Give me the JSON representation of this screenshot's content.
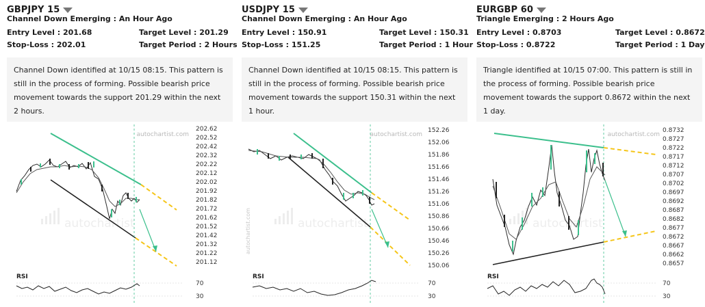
{
  "cards": [
    {
      "symbol": "GBPJPY 15",
      "pattern": "Channel Down Emerging : An Hour Ago",
      "entry": "Entry Level : 201.68",
      "target": "Target Level : 201.29",
      "stop": "Stop-Loss : 202.01",
      "period": "Target Period : 2 Hours",
      "description": "Channel Down identified at 10/15 08:15. This pattern is still in the process of forming. Possible bearish price movement towards the support 201.29 within the next 2 hours.",
      "watermark": "autochartist.com",
      "logo": "autochartist",
      "rsi_label": "RSI",
      "rsi_ticks": [
        "70",
        "30"
      ],
      "y_ticks": [
        "202.62",
        "202.52",
        "202.42",
        "202.32",
        "202.22",
        "202.12",
        "202.02",
        "201.92",
        "201.82",
        "201.72",
        "201.62",
        "201.52",
        "201.42",
        "201.32",
        "201.22",
        "201.12"
      ]
    },
    {
      "symbol": "USDJPY 15",
      "pattern": "Channel Down Emerging : An Hour Ago",
      "entry": "Entry Level : 150.91",
      "target": "Target Level : 150.31",
      "stop": "Stop-Loss : 151.25",
      "period": "Target Period : 1 Hour",
      "description": "Channel Down identified at 10/15 08:15. This pattern is still in the process of forming. Possible bearish price movement towards the support 150.31 within the next 1 hour.",
      "watermark": "autochartist.com",
      "logo": "autochartist",
      "rsi_label": "RSI",
      "rsi_ticks": [
        "70",
        "30"
      ],
      "y_ticks": [
        "152.26",
        "152.06",
        "151.86",
        "151.66",
        "151.46",
        "151.26",
        "151.06",
        "150.86",
        "150.66",
        "150.46",
        "150.26",
        "150.06"
      ]
    },
    {
      "symbol": "EURGBP 60",
      "pattern": "Triangle Emerging : 2 Hours Ago",
      "entry": "Entry Level : 0.8703",
      "target": "Target Level : 0.8672",
      "stop": "Stop-Loss : 0.8722",
      "period": "Target Period : 1 Day",
      "description": "Triangle identified at 10/15 07:00. This pattern is still in the process of forming. Possible bearish price movement towards the support 0.8672 within the next 1 day.",
      "watermark": "autochartist.com",
      "logo": "autochartist",
      "rsi_label": "RSI",
      "rsi_ticks": [
        "70",
        "30"
      ],
      "y_ticks": [
        "0.8732",
        "0.8727",
        "0.8722",
        "0.8717",
        "0.8712",
        "0.8707",
        "0.8702",
        "0.8697",
        "0.8692",
        "0.8687",
        "0.8682",
        "0.8677",
        "0.8672",
        "0.8667",
        "0.8662",
        "0.8657"
      ]
    }
  ]
}
